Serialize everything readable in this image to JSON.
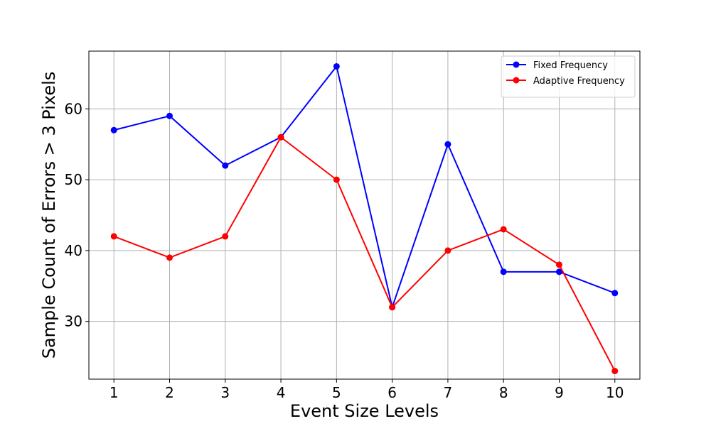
{
  "chart_data": {
    "type": "line",
    "title": "",
    "xlabel": "Event Size Levels",
    "ylabel": "Sample Count of Errors > 3 Pixels",
    "x": [
      1,
      2,
      3,
      4,
      5,
      6,
      7,
      8,
      9,
      10
    ],
    "xticks": [
      "1",
      "2",
      "3",
      "4",
      "5",
      "6",
      "7",
      "8",
      "9",
      "10"
    ],
    "yticks": [
      "30",
      "40",
      "50",
      "60"
    ],
    "xlim": [
      0.55,
      10.45
    ],
    "ylim": [
      21.85,
      68.15
    ],
    "grid": true,
    "legend_position": "top-right",
    "series": [
      {
        "name": "Fixed Frequency",
        "color": "#0000ff",
        "marker": "circle",
        "values": [
          57,
          59,
          52,
          56,
          66,
          32,
          55,
          37,
          37,
          34
        ]
      },
      {
        "name": "Adaptive Frequency",
        "color": "#ff0000",
        "marker": "circle",
        "values": [
          42,
          39,
          42,
          56,
          50,
          32,
          40,
          43,
          38,
          23
        ]
      }
    ]
  }
}
